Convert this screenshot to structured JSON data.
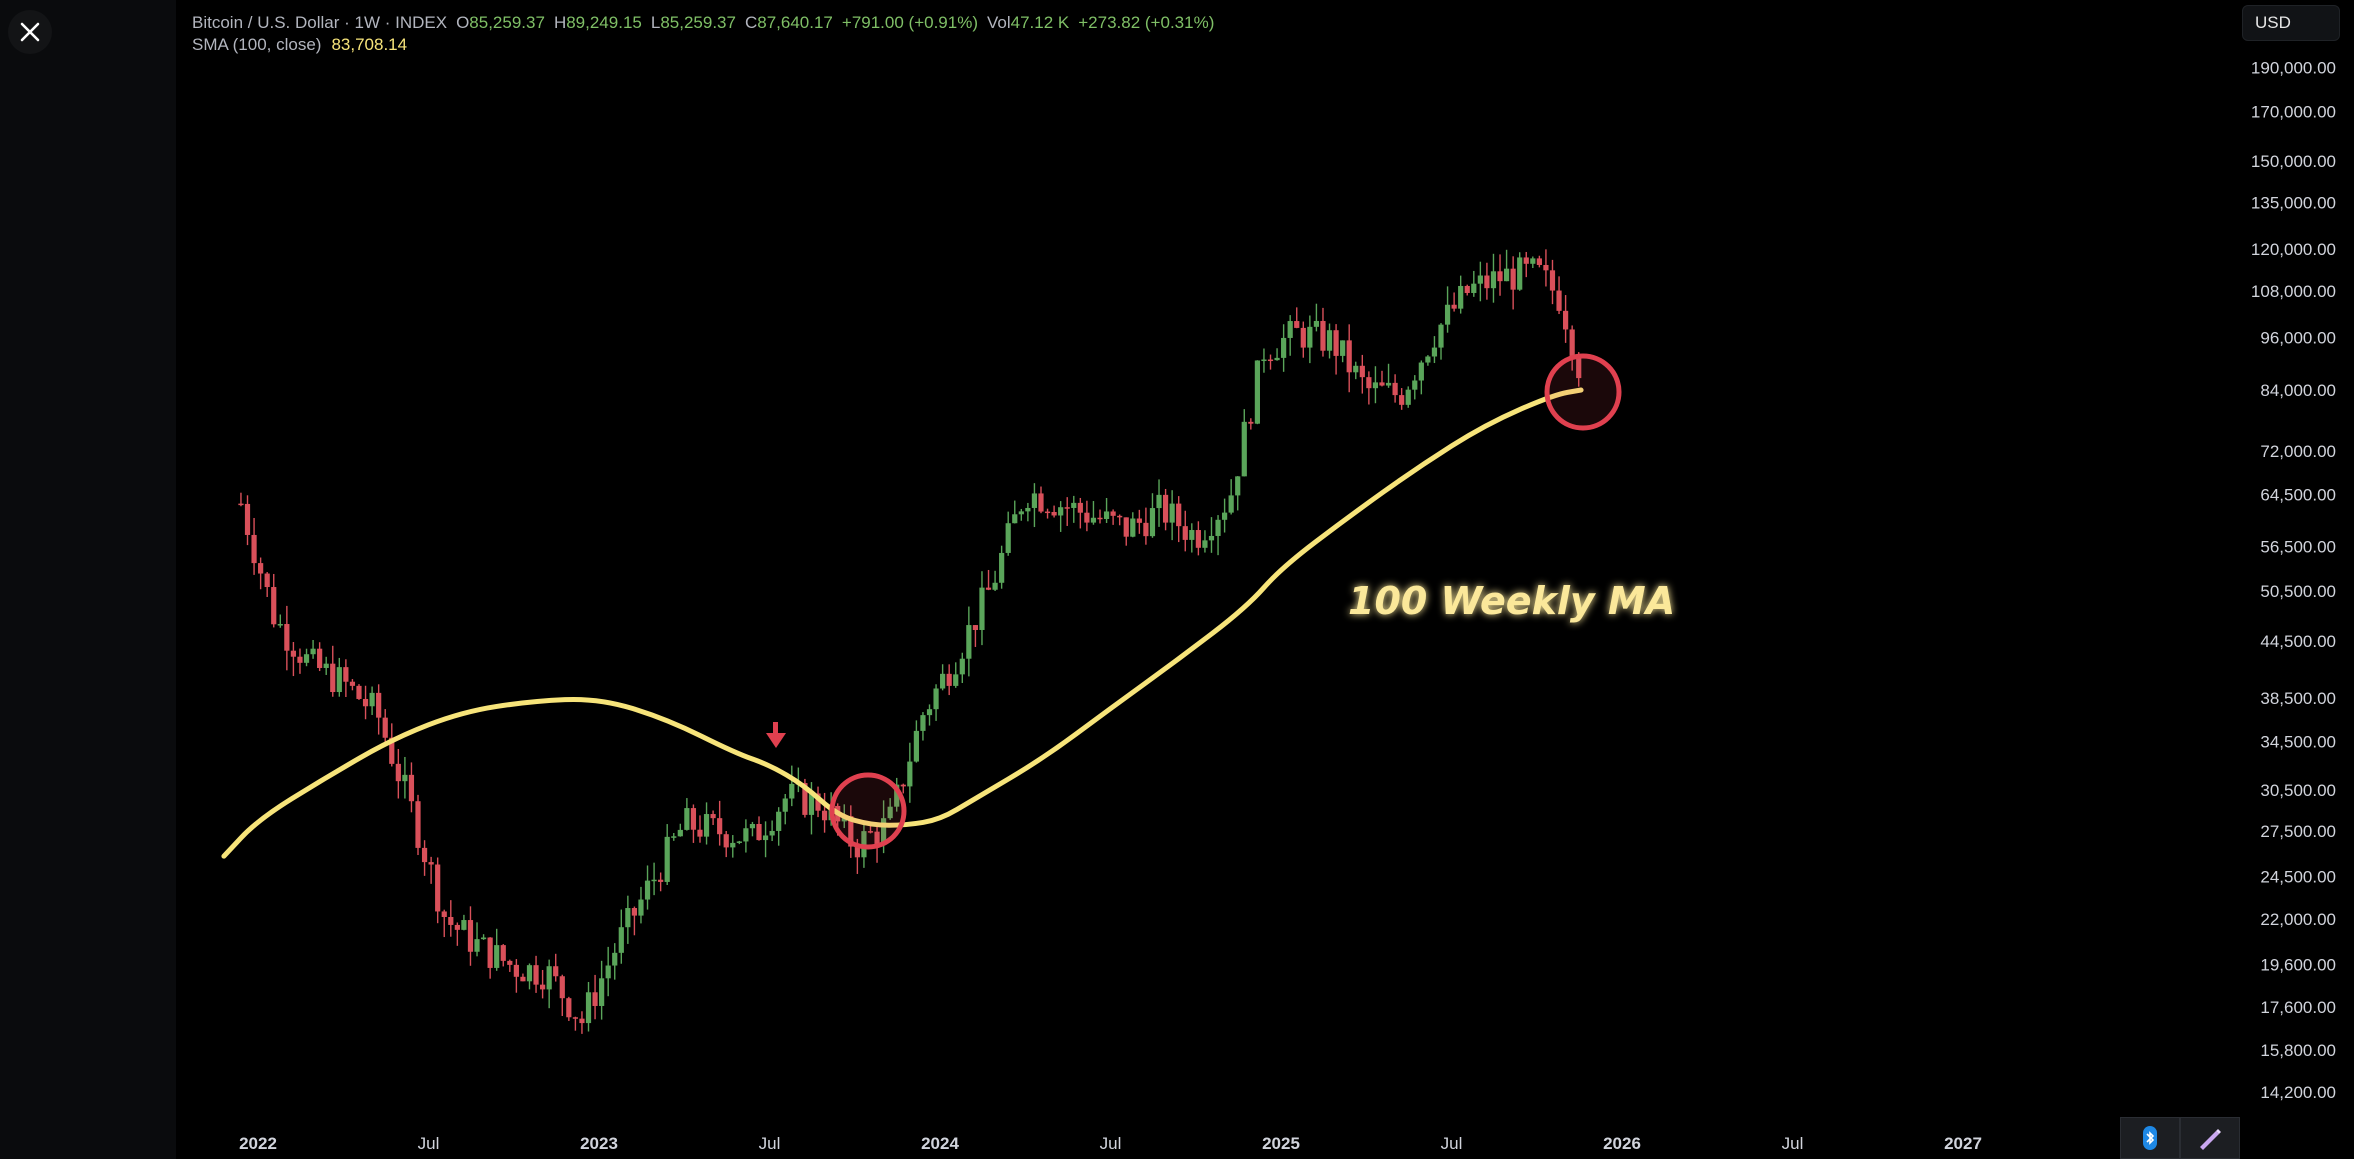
{
  "header": {
    "symbol": "Bitcoin / U.S. Dollar · 1W · INDEX",
    "open_label": "O",
    "open": "85,259.37",
    "high_label": "H",
    "high": "89,249.15",
    "low_label": "L",
    "low": "85,259.37",
    "close_label": "C",
    "close": "87,640.17",
    "change": "+791.00 (+0.91%)",
    "vol_label": "Vol",
    "vol": "47.12 K",
    "vol_change": "+273.82 (+0.31%)",
    "sma_label": "SMA (100, close)",
    "sma_value": "83,708.14"
  },
  "currency": "USD",
  "icons": {
    "close": "close-icon",
    "bluetooth": "bluetooth-icon",
    "pen": "pen-icon"
  },
  "colors": {
    "up": "#5aa55a",
    "down": "#d9505a",
    "ma": "#f7e47a",
    "circle": "#e0404f",
    "background": "#000000"
  },
  "chart_data": {
    "type": "candlestick",
    "timeframe": "1W",
    "y_scale": "log",
    "y_ticks": [
      "190,000.00",
      "170,000.00",
      "150,000.00",
      "135,000.00",
      "120,000.00",
      "108,000.00",
      "96,000.00",
      "84,000.00",
      "72,000.00",
      "64,500.00",
      "56,500.00",
      "50,500.00",
      "44,500.00",
      "38,500.00",
      "34,500.00",
      "30,500.00",
      "27,500.00",
      "24,500.00",
      "22,000.00",
      "19,600.00",
      "17,600.00",
      "15,800.00",
      "14,200.00"
    ],
    "x_ticks": [
      "2022",
      "Jul",
      "2023",
      "Jul",
      "2024",
      "Jul",
      "2025",
      "Jul",
      "2026",
      "Jul",
      "2027"
    ],
    "price_series": {
      "name": "Bitcoin / U.S. Dollar",
      "t": [
        2021.95,
        2022.05,
        2022.15,
        2022.25,
        2022.35,
        2022.45,
        2022.55,
        2022.65,
        2022.75,
        2022.85,
        2022.95,
        2023.05,
        2023.15,
        2023.25,
        2023.35,
        2023.45,
        2023.55,
        2023.65,
        2023.75,
        2023.85,
        2023.95,
        2024.05,
        2024.15,
        2024.25,
        2024.35,
        2024.45,
        2024.55,
        2024.65,
        2024.75,
        2024.85,
        2024.95,
        2025.05,
        2025.15,
        2025.25,
        2025.35,
        2025.45,
        2025.55,
        2025.65,
        2025.75,
        2025.82,
        2025.88
      ],
      "close": [
        63000,
        47000,
        42000,
        40000,
        37000,
        29000,
        22000,
        20500,
        19500,
        19200,
        17000,
        20500,
        24000,
        28000,
        27500,
        27000,
        30000,
        29500,
        26500,
        28000,
        37000,
        43000,
        51000,
        65000,
        63000,
        61000,
        59000,
        62000,
        58000,
        64000,
        93000,
        97000,
        95000,
        84000,
        83000,
        97000,
        108000,
        112000,
        113000,
        106000,
        87640
      ]
    },
    "sma_series": {
      "name": "SMA (100, close)",
      "t": [
        2021.9,
        2022.0,
        2022.2,
        2022.4,
        2022.6,
        2022.8,
        2023.0,
        2023.2,
        2023.4,
        2023.5,
        2023.6,
        2023.7,
        2023.8,
        2023.9,
        2024.0,
        2024.1,
        2024.3,
        2024.5,
        2024.7,
        2024.9,
        2025.0,
        2025.2,
        2025.4,
        2025.6,
        2025.8,
        2025.88
      ],
      "value": [
        25800,
        28300,
        31500,
        34800,
        37200,
        38200,
        38500,
        36500,
        33500,
        32500,
        30900,
        28600,
        27900,
        27900,
        28300,
        29800,
        33000,
        37500,
        42500,
        48500,
        53500,
        61000,
        69000,
        77000,
        83000,
        84000
      ]
    },
    "annotations": [
      "100 Weekly MA"
    ]
  }
}
